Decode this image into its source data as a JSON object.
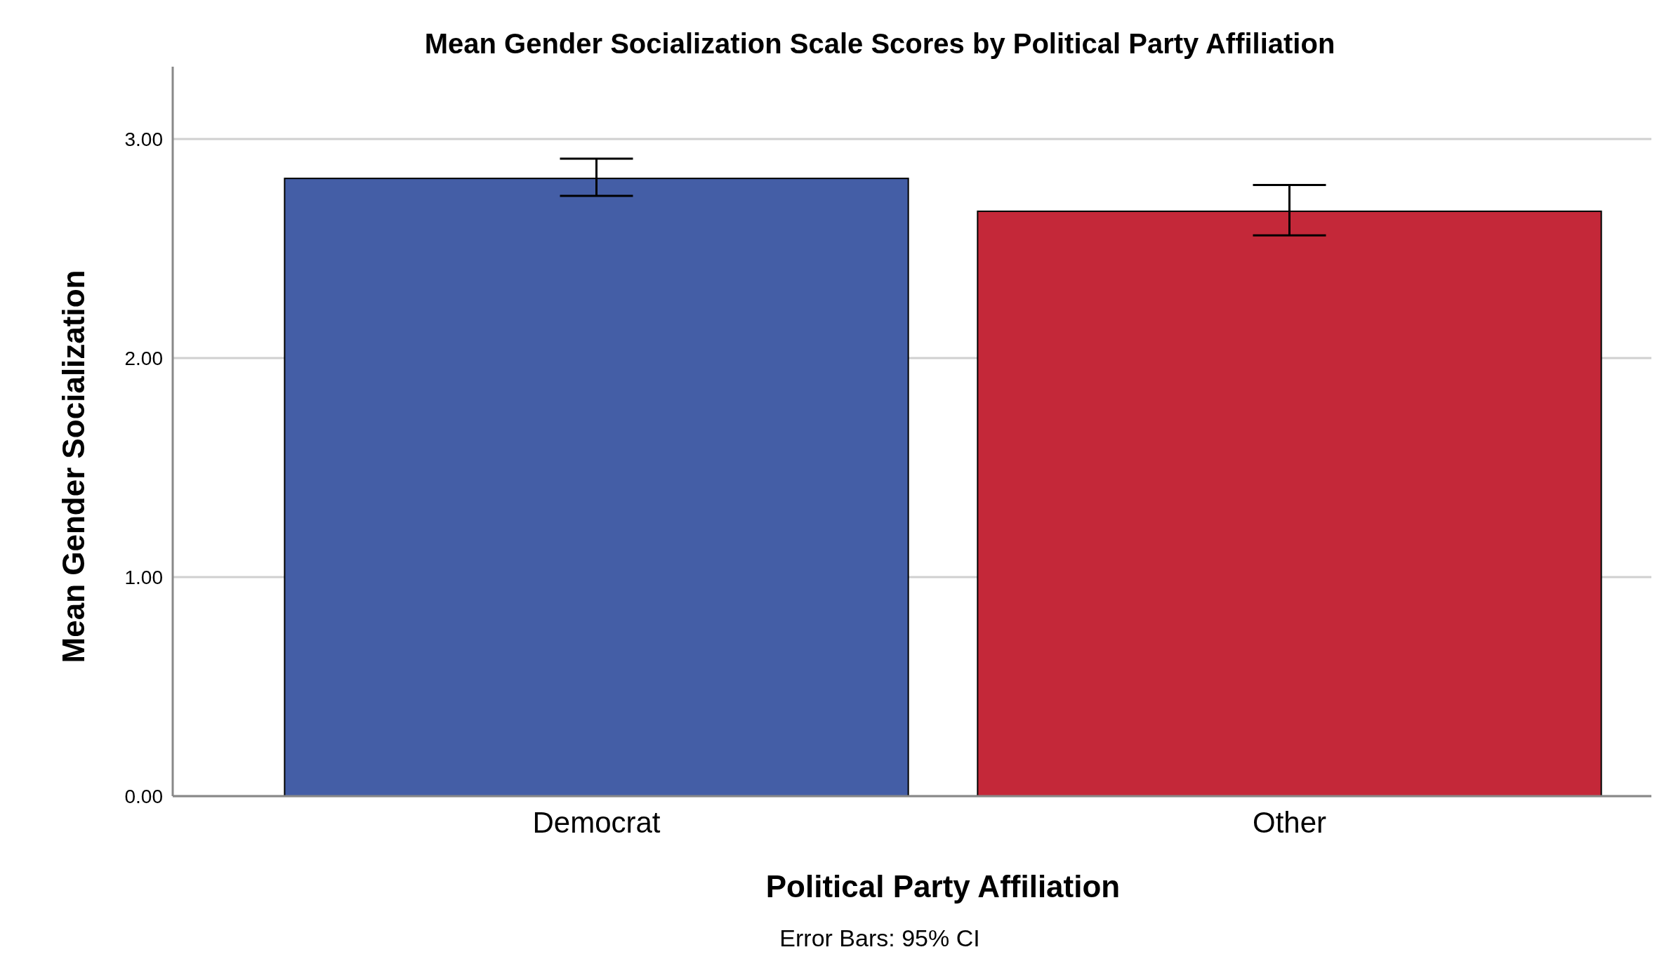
{
  "chart_data": {
    "type": "bar",
    "title": "Mean Gender Socialization Scale Scores by Political Party Affiliation",
    "xlabel": "Political Party Affiliation",
    "ylabel": "Mean Gender Socialization",
    "categories": [
      "Democrat",
      "Other"
    ],
    "values": [
      2.82,
      2.67
    ],
    "colors": [
      "#445ea6",
      "#c42839"
    ],
    "errors": [
      [
        2.74,
        2.91
      ],
      [
        2.56,
        2.79
      ]
    ],
    "ylim": [
      0,
      3.33
    ],
    "yticks": [
      {
        "value": 0,
        "label": "0.00"
      },
      {
        "value": 1,
        "label": "1.00"
      },
      {
        "value": 2,
        "label": "2.00"
      },
      {
        "value": 3,
        "label": "3.00"
      }
    ],
    "grid": "y",
    "annotations": [
      "Error Bars: 95% CI"
    ]
  }
}
